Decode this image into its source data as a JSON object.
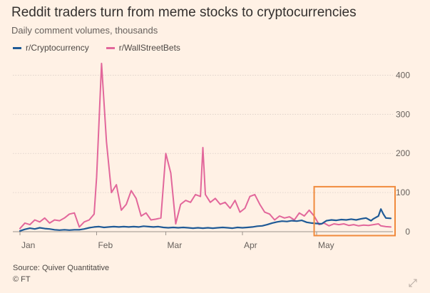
{
  "header": {
    "title": "Reddit traders turn from meme stocks to cryptocurrencies",
    "subtitle": "Daily comment volumes, thousands"
  },
  "footer": {
    "source": "Source: Quiver Quantitative",
    "credit": "© FT"
  },
  "colors": {
    "background": "#FFF1E5",
    "crypto": "#1F5A96",
    "wsb": "#E2679B",
    "highlight": "#F08A3C",
    "grid": "#D9CEC6",
    "axis": "#66605C"
  },
  "chart_data": {
    "type": "line",
    "x_unit": "date (2021)",
    "x_start": "2021-01-01",
    "x_end": "2021-05-31",
    "ylim": [
      0,
      450
    ],
    "yticks": [
      0,
      100,
      200,
      300,
      400
    ],
    "y_tick_position": "right",
    "xticks": [
      {
        "label": "Jan",
        "date": "2021-01-01"
      },
      {
        "label": "Feb",
        "date": "2021-02-01"
      },
      {
        "label": "Mar",
        "date": "2021-03-01"
      },
      {
        "label": "Apr",
        "date": "2021-04-01"
      },
      {
        "label": "May",
        "date": "2021-05-01"
      }
    ],
    "grid": "horizontal",
    "legend_position": "top-left",
    "highlight_box": {
      "x_from": "2021-04-30",
      "x_to": "2021-05-31",
      "y_from": -10,
      "y_to": 115
    },
    "series": [
      {
        "name": "r/Cryptocurrency",
        "color": "#1F5A96",
        "points": [
          [
            "2021-01-01",
            2
          ],
          [
            "2021-01-03",
            6
          ],
          [
            "2021-01-05",
            9
          ],
          [
            "2021-01-07",
            7
          ],
          [
            "2021-01-09",
            10
          ],
          [
            "2021-01-11",
            8
          ],
          [
            "2021-01-13",
            7
          ],
          [
            "2021-01-15",
            5
          ],
          [
            "2021-01-17",
            4
          ],
          [
            "2021-01-19",
            5
          ],
          [
            "2021-01-21",
            4
          ],
          [
            "2021-01-23",
            5
          ],
          [
            "2021-01-25",
            5
          ],
          [
            "2021-01-27",
            7
          ],
          [
            "2021-01-29",
            10
          ],
          [
            "2021-01-31",
            12
          ],
          [
            "2021-02-02",
            13
          ],
          [
            "2021-02-04",
            11
          ],
          [
            "2021-02-06",
            12
          ],
          [
            "2021-02-08",
            13
          ],
          [
            "2021-02-10",
            12
          ],
          [
            "2021-02-12",
            13
          ],
          [
            "2021-02-14",
            12
          ],
          [
            "2021-02-16",
            13
          ],
          [
            "2021-02-18",
            12
          ],
          [
            "2021-02-20",
            14
          ],
          [
            "2021-02-22",
            13
          ],
          [
            "2021-02-24",
            12
          ],
          [
            "2021-02-26",
            13
          ],
          [
            "2021-02-28",
            11
          ],
          [
            "2021-03-02",
            10
          ],
          [
            "2021-03-04",
            11
          ],
          [
            "2021-03-06",
            10
          ],
          [
            "2021-03-08",
            11
          ],
          [
            "2021-03-10",
            10
          ],
          [
            "2021-03-12",
            9
          ],
          [
            "2021-03-14",
            10
          ],
          [
            "2021-03-16",
            9
          ],
          [
            "2021-03-18",
            10
          ],
          [
            "2021-03-20",
            9
          ],
          [
            "2021-03-22",
            10
          ],
          [
            "2021-03-24",
            11
          ],
          [
            "2021-03-26",
            10
          ],
          [
            "2021-03-28",
            9
          ],
          [
            "2021-03-30",
            11
          ],
          [
            "2021-04-01",
            10
          ],
          [
            "2021-04-03",
            11
          ],
          [
            "2021-04-05",
            12
          ],
          [
            "2021-04-07",
            14
          ],
          [
            "2021-04-09",
            15
          ],
          [
            "2021-04-11",
            18
          ],
          [
            "2021-04-13",
            22
          ],
          [
            "2021-04-15",
            25
          ],
          [
            "2021-04-17",
            27
          ],
          [
            "2021-04-19",
            26
          ],
          [
            "2021-04-21",
            28
          ],
          [
            "2021-04-23",
            27
          ],
          [
            "2021-04-25",
            29
          ],
          [
            "2021-04-27",
            24
          ],
          [
            "2021-04-29",
            22
          ],
          [
            "2021-05-01",
            21
          ],
          [
            "2021-05-03",
            20
          ],
          [
            "2021-05-05",
            28
          ],
          [
            "2021-05-07",
            30
          ],
          [
            "2021-05-09",
            29
          ],
          [
            "2021-05-11",
            31
          ],
          [
            "2021-05-13",
            30
          ],
          [
            "2021-05-15",
            32
          ],
          [
            "2021-05-17",
            30
          ],
          [
            "2021-05-19",
            33
          ],
          [
            "2021-05-21",
            35
          ],
          [
            "2021-05-23",
            28
          ],
          [
            "2021-05-24",
            33
          ],
          [
            "2021-05-26",
            40
          ],
          [
            "2021-05-27",
            58
          ],
          [
            "2021-05-28",
            45
          ],
          [
            "2021-05-29",
            35
          ],
          [
            "2021-05-31",
            34
          ]
        ]
      },
      {
        "name": "r/WallStreetBets",
        "color": "#E2679B",
        "points": [
          [
            "2021-01-01",
            8
          ],
          [
            "2021-01-03",
            22
          ],
          [
            "2021-01-05",
            18
          ],
          [
            "2021-01-07",
            30
          ],
          [
            "2021-01-09",
            25
          ],
          [
            "2021-01-11",
            35
          ],
          [
            "2021-01-13",
            22
          ],
          [
            "2021-01-15",
            30
          ],
          [
            "2021-01-17",
            28
          ],
          [
            "2021-01-19",
            35
          ],
          [
            "2021-01-21",
            45
          ],
          [
            "2021-01-23",
            48
          ],
          [
            "2021-01-25",
            12
          ],
          [
            "2021-01-27",
            25
          ],
          [
            "2021-01-29",
            30
          ],
          [
            "2021-01-31",
            45
          ],
          [
            "2021-02-01",
            140
          ],
          [
            "2021-02-03",
            430
          ],
          [
            "2021-02-05",
            230
          ],
          [
            "2021-02-07",
            100
          ],
          [
            "2021-02-09",
            120
          ],
          [
            "2021-02-11",
            55
          ],
          [
            "2021-02-13",
            70
          ],
          [
            "2021-02-15",
            105
          ],
          [
            "2021-02-17",
            85
          ],
          [
            "2021-02-19",
            40
          ],
          [
            "2021-02-21",
            48
          ],
          [
            "2021-02-23",
            30
          ],
          [
            "2021-02-25",
            32
          ],
          [
            "2021-02-27",
            35
          ],
          [
            "2021-03-01",
            200
          ],
          [
            "2021-03-03",
            150
          ],
          [
            "2021-03-05",
            20
          ],
          [
            "2021-03-07",
            70
          ],
          [
            "2021-03-09",
            80
          ],
          [
            "2021-03-11",
            75
          ],
          [
            "2021-03-13",
            95
          ],
          [
            "2021-03-15",
            90
          ],
          [
            "2021-03-16",
            215
          ],
          [
            "2021-03-17",
            95
          ],
          [
            "2021-03-19",
            75
          ],
          [
            "2021-03-21",
            85
          ],
          [
            "2021-03-23",
            70
          ],
          [
            "2021-03-25",
            75
          ],
          [
            "2021-03-27",
            60
          ],
          [
            "2021-03-29",
            80
          ],
          [
            "2021-03-31",
            50
          ],
          [
            "2021-04-02",
            60
          ],
          [
            "2021-04-04",
            90
          ],
          [
            "2021-04-06",
            95
          ],
          [
            "2021-04-08",
            70
          ],
          [
            "2021-04-10",
            50
          ],
          [
            "2021-04-12",
            45
          ],
          [
            "2021-04-14",
            30
          ],
          [
            "2021-04-16",
            40
          ],
          [
            "2021-04-18",
            35
          ],
          [
            "2021-04-20",
            38
          ],
          [
            "2021-04-22",
            30
          ],
          [
            "2021-04-24",
            48
          ],
          [
            "2021-04-26",
            40
          ],
          [
            "2021-04-28",
            55
          ],
          [
            "2021-04-30",
            40
          ],
          [
            "2021-05-02",
            18
          ],
          [
            "2021-05-04",
            22
          ],
          [
            "2021-05-06",
            15
          ],
          [
            "2021-05-08",
            20
          ],
          [
            "2021-05-10",
            18
          ],
          [
            "2021-05-12",
            20
          ],
          [
            "2021-05-14",
            16
          ],
          [
            "2021-05-16",
            18
          ],
          [
            "2021-05-18",
            15
          ],
          [
            "2021-05-20",
            17
          ],
          [
            "2021-05-22",
            16
          ],
          [
            "2021-05-24",
            18
          ],
          [
            "2021-05-26",
            20
          ],
          [
            "2021-05-27",
            15
          ],
          [
            "2021-05-29",
            13
          ],
          [
            "2021-05-31",
            12
          ]
        ]
      }
    ]
  }
}
